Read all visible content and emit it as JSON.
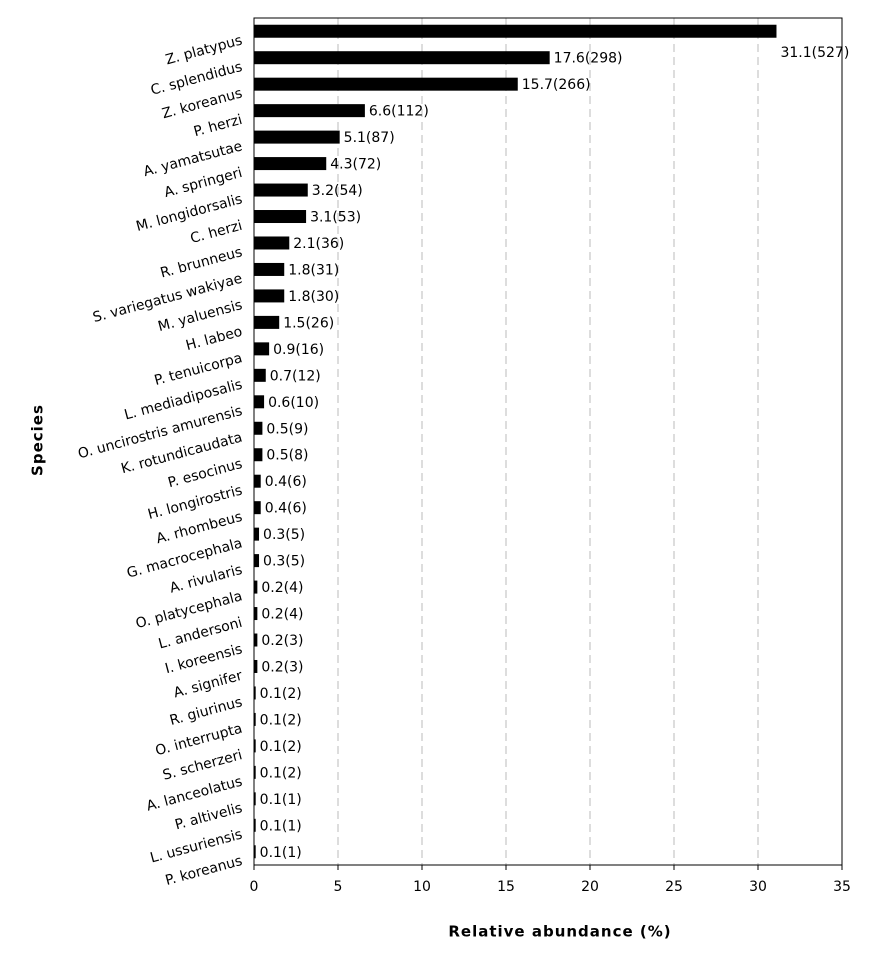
{
  "chart_data": {
    "type": "bar",
    "orientation": "horizontal",
    "xlabel": "Relative abundance (%)",
    "ylabel": "Species",
    "categories": [
      "Z. platypus",
      "C. splendidus",
      "Z. koreanus",
      "P. herzi",
      "A. yamatsutae",
      "A. springeri",
      "M. longidorsalis",
      "C. herzi",
      "R. brunneus",
      "S. variegatus wakiyae",
      "M. yaluensis",
      "H. labeo",
      "P. tenuicorpa",
      "L. mediadiposalis",
      "O. uncirostris amurensis",
      "K. rotundicaudata",
      "P. esocinus",
      "H. longirostris",
      "A. rhombeus",
      "G. macrocephala",
      "A. rivularis",
      "O. platycephala",
      "L. andersoni",
      "I. koreensis",
      "A. signifer",
      "R. giurinus",
      "O. interrupta",
      "S. scherzeri",
      "A. lanceolatus",
      "P. altivelis",
      "L. ussuriensis",
      "P. koreanus"
    ],
    "values": [
      31.1,
      17.6,
      15.7,
      6.6,
      5.1,
      4.3,
      3.2,
      3.1,
      2.1,
      1.8,
      1.8,
      1.5,
      0.9,
      0.7,
      0.6,
      0.5,
      0.5,
      0.4,
      0.4,
      0.3,
      0.3,
      0.2,
      0.2,
      0.2,
      0.2,
      0.1,
      0.1,
      0.1,
      0.1,
      0.1,
      0.1,
      0.1
    ],
    "value_labels": [
      "31.1(527)",
      "17.6(298)",
      "15.7(266)",
      "6.6(112)",
      "5.1(87)",
      "4.3(72)",
      "3.2(54)",
      "3.1(53)",
      "2.1(36)",
      "1.8(31)",
      "1.8(30)",
      "1.5(26)",
      "0.9(16)",
      "0.7(12)",
      "0.6(10)",
      "0.5(9)",
      "0.5(8)",
      "0.4(6)",
      "0.4(6)",
      "0.3(5)",
      "0.3(5)",
      "0.2(4)",
      "0.2(4)",
      "0.2(3)",
      "0.2(3)",
      "0.1(2)",
      "0.1(2)",
      "0.1(2)",
      "0.1(2)",
      "0.1(1)",
      "0.1(1)",
      "0.1(1)"
    ],
    "color": "#000000",
    "xlim": [
      0,
      35
    ],
    "xticks": [
      0,
      5,
      10,
      15,
      20,
      25,
      30,
      35
    ],
    "grid": true
  }
}
